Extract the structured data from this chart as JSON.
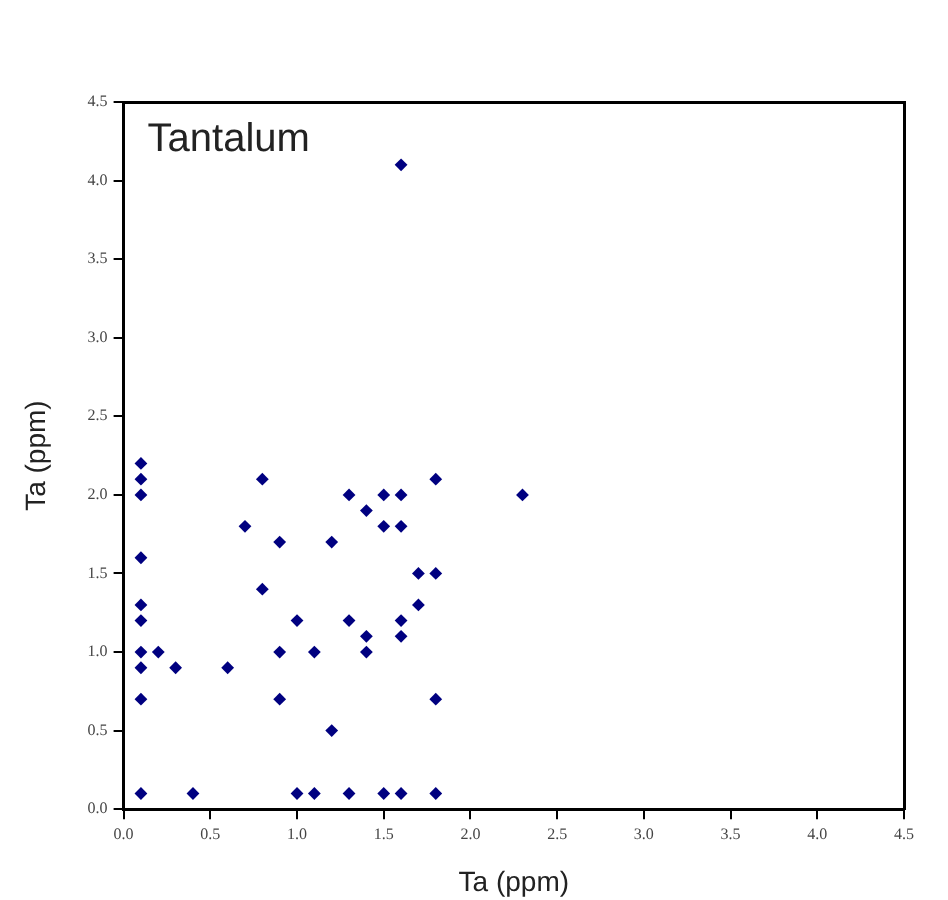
{
  "chart_data": {
    "type": "scatter",
    "title": "Tantalum",
    "xlabel": "Ta (ppm)",
    "ylabel": "Ta (ppm)",
    "x": [
      0.1,
      0.1,
      0.1,
      0.1,
      0.1,
      0.1,
      0.1,
      0.1,
      0.1,
      0.1,
      0.2,
      0.3,
      0.4,
      0.6,
      0.7,
      0.8,
      0.8,
      0.9,
      0.9,
      0.9,
      1.0,
      1.0,
      1.1,
      1.1,
      1.2,
      1.2,
      1.3,
      1.3,
      1.3,
      1.4,
      1.4,
      1.4,
      1.5,
      1.5,
      1.5,
      1.6,
      1.6,
      1.6,
      1.6,
      1.6,
      1.6,
      1.7,
      1.7,
      1.8,
      1.8,
      1.8,
      1.8,
      2.3
    ],
    "series": [
      {
        "color": "#000080",
        "values": [
          2.2,
          2.1,
          2.0,
          1.6,
          1.3,
          1.2,
          1.0,
          0.9,
          0.7,
          0.1,
          1.0,
          0.9,
          0.1,
          0.9,
          1.8,
          2.1,
          1.4,
          1.7,
          1.0,
          0.7,
          1.2,
          0.1,
          1.0,
          0.1,
          1.7,
          0.5,
          2.0,
          1.2,
          0.1,
          1.9,
          1.1,
          1.0,
          2.0,
          1.8,
          0.1,
          4.1,
          2.0,
          1.8,
          1.2,
          1.1,
          0.1,
          1.5,
          1.3,
          2.1,
          1.5,
          0.7,
          0.1,
          2.0
        ]
      }
    ],
    "marker": "diamond",
    "grid": false,
    "legend": false,
    "xlim": [
      0,
      4.5
    ],
    "ylim": [
      0,
      4.5
    ],
    "xticks": [
      {
        "value": 0,
        "label": "0.0"
      },
      {
        "value": 0.5,
        "label": "0.5"
      },
      {
        "value": 1,
        "label": "1.0"
      },
      {
        "value": 1.5,
        "label": "1.5"
      },
      {
        "value": 2,
        "label": "2.0"
      },
      {
        "value": 2.5,
        "label": "2.5"
      },
      {
        "value": 3,
        "label": "3.0"
      },
      {
        "value": 3.5,
        "label": "3.5"
      },
      {
        "value": 4,
        "label": "4.0"
      },
      {
        "value": 4.5,
        "label": "4.5"
      }
    ],
    "yticks": [
      {
        "value": 0,
        "label": "0.0"
      },
      {
        "value": 0.5,
        "label": "0.5"
      },
      {
        "value": 1,
        "label": "1.0"
      },
      {
        "value": 1.5,
        "label": "1.5"
      },
      {
        "value": 2,
        "label": "2.0"
      },
      {
        "value": 2.5,
        "label": "2.5"
      },
      {
        "value": 3,
        "label": "3.0"
      },
      {
        "value": 3.5,
        "label": "3.5"
      },
      {
        "value": 4,
        "label": "4.0"
      },
      {
        "value": 4.5,
        "label": "4.5"
      }
    ]
  }
}
